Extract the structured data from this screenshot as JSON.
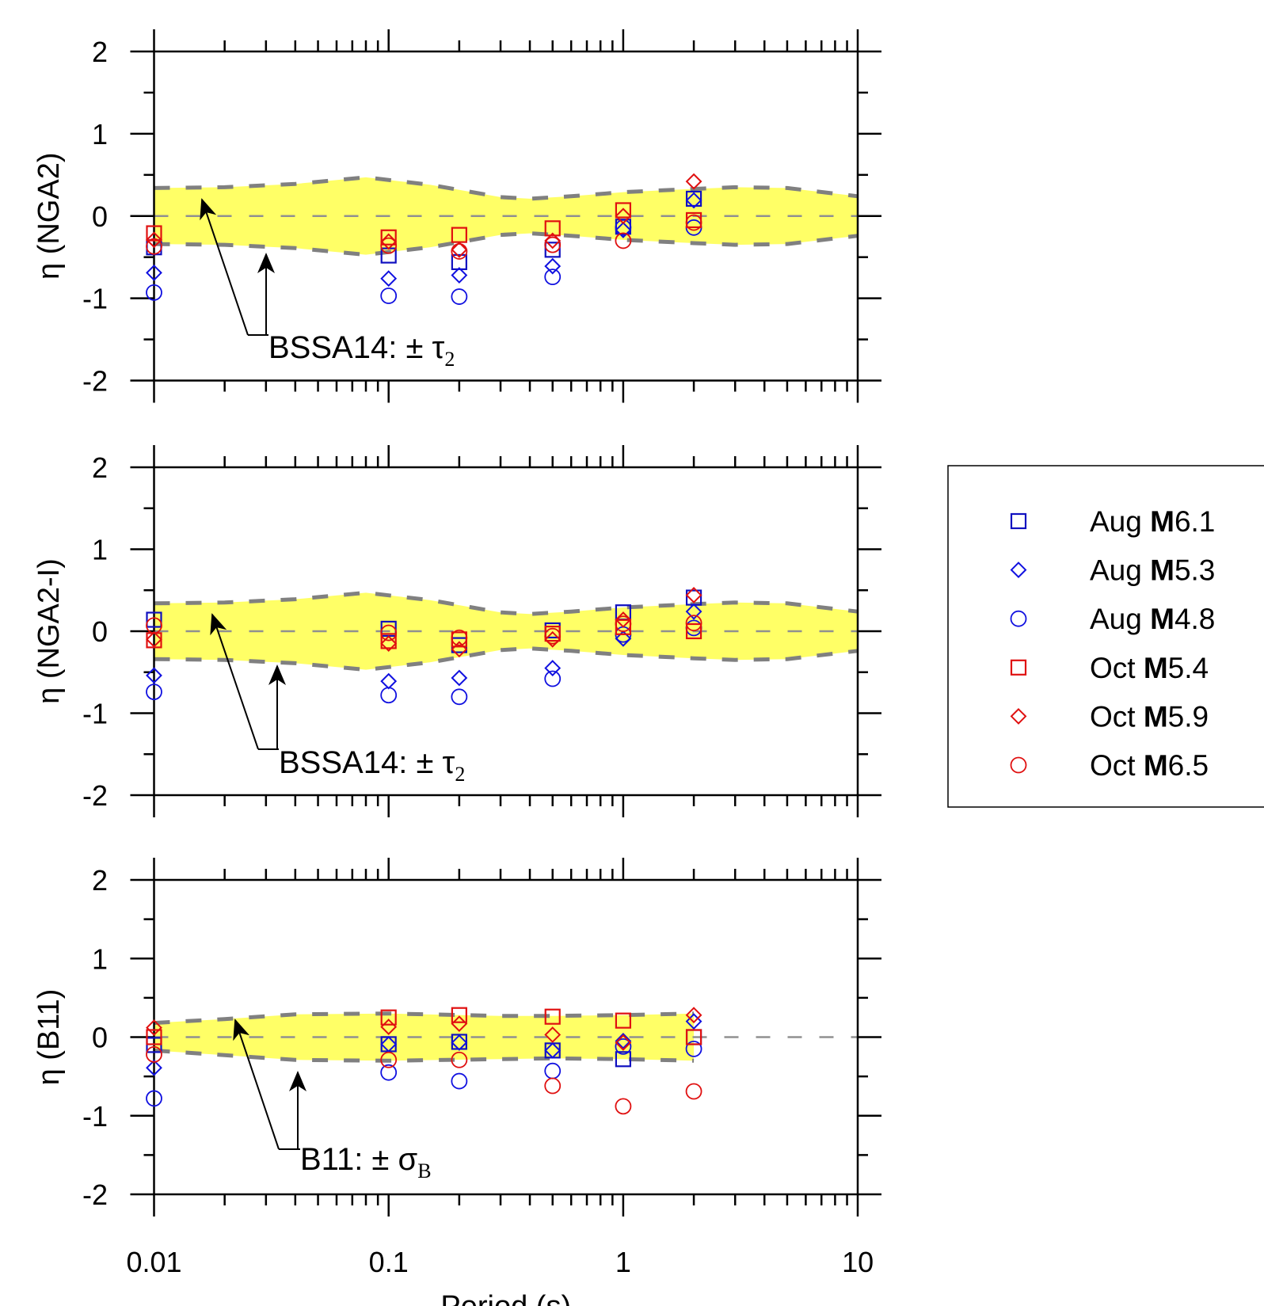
{
  "chart_data": [
    {
      "type": "scatter",
      "ylabel": "η (NGA2)",
      "xlabel": "",
      "x_scale": "log",
      "xlim": [
        0.01,
        10
      ],
      "ylim": [
        -2,
        2
      ],
      "yticks": [
        "2",
        "1",
        "0",
        "-1",
        "-2"
      ],
      "grid": false,
      "band": {
        "label": "BSSA14: ± τ",
        "label_sub": "2",
        "x": [
          0.01,
          0.02,
          0.04,
          0.08,
          0.15,
          0.3,
          0.4,
          0.6,
          1,
          2,
          3,
          5,
          10
        ],
        "upper": [
          0.34,
          0.35,
          0.39,
          0.47,
          0.38,
          0.23,
          0.21,
          0.24,
          0.29,
          0.33,
          0.35,
          0.34,
          0.24
        ],
        "lower": [
          -0.34,
          -0.35,
          -0.39,
          -0.47,
          -0.38,
          -0.23,
          -0.21,
          -0.24,
          -0.29,
          -0.33,
          -0.35,
          -0.34,
          -0.24
        ],
        "x_end": 10
      },
      "x": [
        0.01,
        0.1,
        0.2,
        0.5,
        1,
        2
      ],
      "series": [
        {
          "name": "Aug M6.1",
          "values": [
            -0.38,
            -0.48,
            -0.56,
            -0.41,
            -0.13,
            0.21
          ]
        },
        {
          "name": "Aug M5.3",
          "values": [
            -0.69,
            -0.76,
            -0.72,
            -0.61,
            -0.17,
            0.19
          ]
        },
        {
          "name": "Aug M4.8",
          "values": [
            -0.93,
            -0.97,
            -0.98,
            -0.74,
            -0.14,
            -0.14
          ]
        },
        {
          "name": "Oct M5.4",
          "values": [
            -0.21,
            -0.26,
            -0.23,
            -0.15,
            0.07,
            -0.05
          ]
        },
        {
          "name": "Oct M5.9",
          "values": [
            -0.29,
            -0.31,
            -0.41,
            -0.3,
            0.0,
            0.42
          ]
        },
        {
          "name": "Oct M6.5",
          "values": [
            -0.37,
            -0.36,
            -0.43,
            -0.35,
            -0.3,
            -0.08
          ]
        }
      ]
    },
    {
      "type": "scatter",
      "ylabel": "η (NGA2-I)",
      "xlabel": "",
      "x_scale": "log",
      "xlim": [
        0.01,
        10
      ],
      "ylim": [
        -2,
        2
      ],
      "yticks": [
        "2",
        "1",
        "0",
        "-1",
        "-2"
      ],
      "grid": false,
      "band": {
        "label": "BSSA14: ± τ",
        "label_sub": "2",
        "x": [
          0.01,
          0.02,
          0.04,
          0.08,
          0.15,
          0.3,
          0.4,
          0.6,
          1,
          2,
          3,
          5,
          10
        ],
        "upper": [
          0.34,
          0.35,
          0.39,
          0.47,
          0.38,
          0.23,
          0.21,
          0.24,
          0.29,
          0.33,
          0.35,
          0.34,
          0.24
        ],
        "lower": [
          -0.34,
          -0.35,
          -0.39,
          -0.47,
          -0.38,
          -0.23,
          -0.21,
          -0.24,
          -0.29,
          -0.33,
          -0.35,
          -0.34,
          -0.24
        ],
        "x_end": 10
      },
      "x": [
        0.01,
        0.1,
        0.2,
        0.5,
        1,
        2
      ],
      "series": [
        {
          "name": "Aug M6.1",
          "values": [
            0.14,
            0.03,
            -0.17,
            0.01,
            0.23,
            0.41
          ]
        },
        {
          "name": "Aug M5.3",
          "values": [
            -0.54,
            -0.61,
            -0.57,
            -0.45,
            -0.09,
            0.24
          ]
        },
        {
          "name": "Aug M4.8",
          "values": [
            -0.74,
            -0.78,
            -0.8,
            -0.58,
            -0.04,
            0.04
          ]
        },
        {
          "name": "Oct M5.4",
          "values": [
            -0.11,
            -0.12,
            -0.1,
            -0.03,
            0.05,
            0.0
          ]
        },
        {
          "name": "Oct M5.9",
          "values": [
            -0.1,
            -0.15,
            -0.22,
            -0.1,
            0.14,
            0.44
          ]
        },
        {
          "name": "Oct M6.5",
          "values": [
            0.07,
            -0.02,
            -0.08,
            -0.06,
            0.09,
            0.1
          ]
        }
      ]
    },
    {
      "type": "scatter",
      "ylabel": "η (B11)",
      "xlabel": "Period (s)",
      "x_scale": "log",
      "xlim": [
        0.01,
        10
      ],
      "ylim": [
        -2,
        2
      ],
      "yticks": [
        "2",
        "1",
        "0",
        "-1",
        "-2"
      ],
      "xticks": [
        "0.01",
        "0.1",
        "1",
        "10"
      ],
      "grid": false,
      "band": {
        "label": "B11: ± σ",
        "label_sub": "B",
        "x": [
          0.01,
          0.02,
          0.04,
          0.1,
          0.3,
          0.5,
          1,
          2
        ],
        "upper": [
          0.18,
          0.23,
          0.29,
          0.3,
          0.27,
          0.27,
          0.28,
          0.3
        ],
        "lower": [
          -0.17,
          -0.23,
          -0.29,
          -0.3,
          -0.28,
          -0.27,
          -0.28,
          -0.3
        ],
        "x_end": 10
      },
      "x": [
        0.01,
        0.1,
        0.2,
        0.5,
        1,
        2
      ],
      "series": [
        {
          "name": "Aug M6.1",
          "values": [
            -0.1,
            -0.09,
            -0.06,
            -0.17,
            -0.28,
            0.0
          ]
        },
        {
          "name": "Aug M5.3",
          "values": [
            -0.39,
            -0.09,
            -0.07,
            -0.17,
            -0.05,
            0.2
          ]
        },
        {
          "name": "Aug M4.8",
          "values": [
            -0.78,
            -0.45,
            -0.56,
            -0.43,
            -0.12,
            -0.15
          ]
        },
        {
          "name": "Oct M5.4",
          "values": [
            0.0,
            0.25,
            0.28,
            0.26,
            0.21,
            0.0
          ]
        },
        {
          "name": "Oct M5.9",
          "values": [
            0.12,
            0.13,
            0.17,
            0.03,
            -0.07,
            0.28
          ]
        },
        {
          "name": "Oct M6.5",
          "values": [
            -0.22,
            -0.29,
            -0.29,
            -0.62,
            -0.88,
            -0.69
          ]
        }
      ]
    }
  ],
  "legend": {
    "placement": "right",
    "items": [
      {
        "name": "Aug M6.1",
        "marker": "square",
        "color": "#1010c0"
      },
      {
        "name": "Aug M5.3",
        "marker": "diamond",
        "color": "#1010e0"
      },
      {
        "name": "Aug M4.8",
        "marker": "circle",
        "color": "#1010e0"
      },
      {
        "name": "Oct M5.4",
        "marker": "square",
        "color": "#e01010"
      },
      {
        "name": "Oct M5.9",
        "marker": "diamond",
        "color": "#e01010"
      },
      {
        "name": "Oct M6.5",
        "marker": "circle",
        "color": "#e01010"
      }
    ]
  },
  "colors": {
    "band_fill": "#ffff66",
    "band_edge": "#808080",
    "zero_line": "#909090"
  }
}
